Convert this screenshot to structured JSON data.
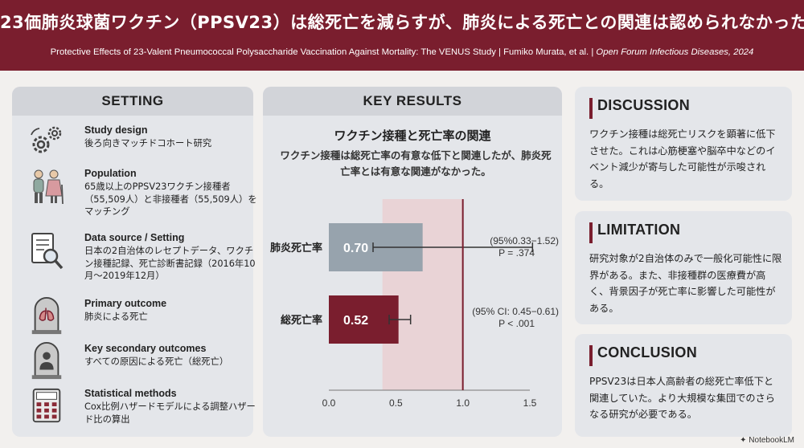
{
  "header": {
    "title": "23価肺炎球菌ワクチン（PPSV23）は総死亡を減らすが、肺炎による死亡との関連は認められなかった",
    "citation_prefix": "Protective Effects of 23-Valent Pneumococcal Polysaccharide Vaccination Against Mortality: The VENUS Study | Fumiko Murata, et al. | ",
    "citation_journal": "Open Forum Infectious Diseases, 2024"
  },
  "setting": {
    "heading": "SETTING",
    "items": [
      {
        "title": "Study design",
        "text": "後ろ向きマッチドコホート研究",
        "icon": "gears-icon"
      },
      {
        "title": "Population",
        "text": "65歳以上のPPSV23ワクチン接種者（55,509人）と非接種者（55,509人）をマッチング",
        "icon": "elderly-couple-icon"
      },
      {
        "title": "Data source / Setting",
        "text": "日本の2自治体のレセプトデータ、ワクチン接種記録、死亡診断書記録（2016年10月〜2019年12月）",
        "icon": "document-magnifier-icon"
      },
      {
        "title": "Primary outcome",
        "text": "肺炎による死亡",
        "icon": "lungs-tombstone-icon"
      },
      {
        "title": "Key secondary outcomes",
        "text": "すべての原因による死亡（総死亡）",
        "icon": "person-tombstone-icon"
      },
      {
        "title": "Statistical methods",
        "text": "Cox比例ハザードモデルによる調整ハザード比の算出",
        "icon": "calculator-icon"
      }
    ]
  },
  "results": {
    "heading": "KEY RESULTS",
    "chart_title": "ワクチン接種と死亡率の関連",
    "chart_subtitle": "ワクチン接種は総死亡率の有意な低下と関連したが、肺炎死亡率とは有意な関連がなかった。"
  },
  "chart_data": {
    "type": "bar",
    "orientation": "horizontal",
    "categories": [
      "肺炎死亡率",
      "総死亡率"
    ],
    "values": [
      0.7,
      0.52
    ],
    "value_labels": [
      "0.70",
      "0.52"
    ],
    "ci": [
      [
        0.33,
        1.52
      ],
      [
        0.45,
        0.61
      ]
    ],
    "ci_labels": [
      "(95%0.33−1.52)",
      "(95% CI: 0.45−0.61)"
    ],
    "p_labels": [
      "P = .374",
      "P < .001"
    ],
    "colors": [
      "#97a3ad",
      "#7a1e2e"
    ],
    "reference_line": 1.0,
    "shaded_range": [
      0.4,
      1.0
    ],
    "xlim": [
      0,
      1.5
    ],
    "xticks": [
      "0.0",
      "0.5",
      "1.0",
      "1.5"
    ]
  },
  "discussion": {
    "heading": "DISCUSSION",
    "text": "ワクチン接種は総死亡リスクを顕著に低下させた。これは心筋梗塞や脳卒中などのイベント減少が寄与した可能性が示唆される。"
  },
  "limitation": {
    "heading": "LIMITATION",
    "text": "研究対象が2自治体のみで一般化可能性に限界がある。また、非接種群の医療費が高く、背景因子が死亡率に影響した可能性がある。"
  },
  "conclusion": {
    "heading": "CONCLUSION",
    "text": "PPSV23は日本人高齢者の総死亡率低下と関連していた。より大規模な集団でのさらなる研究が必要である。"
  },
  "brand": "NotebookLM"
}
